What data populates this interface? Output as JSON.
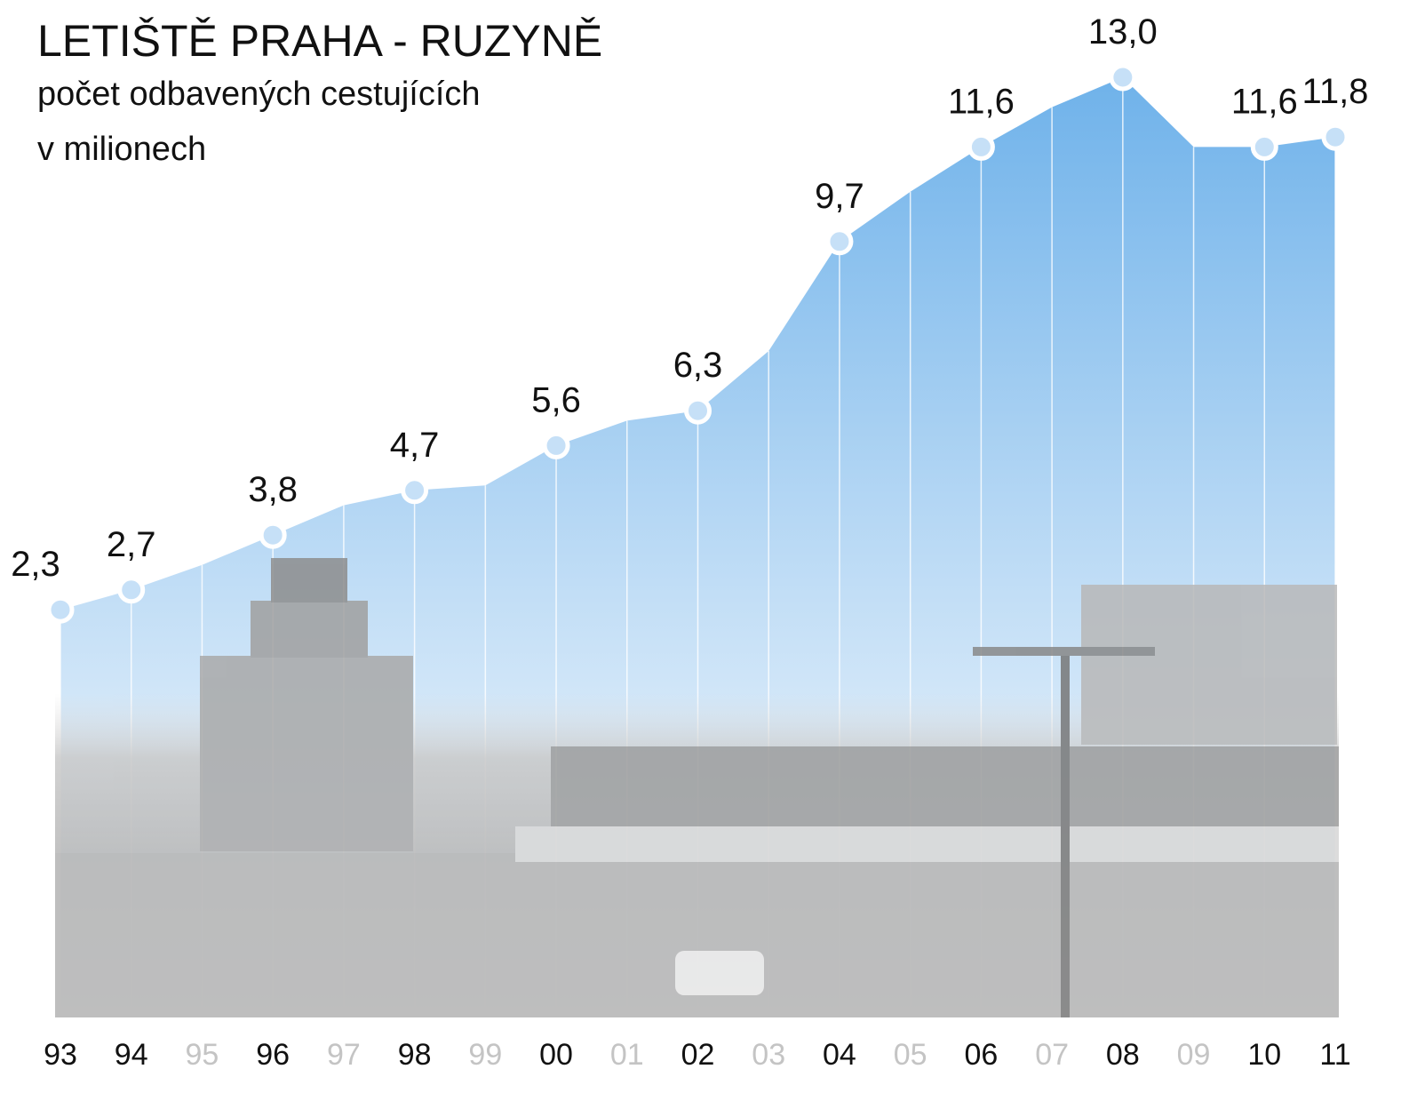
{
  "chart_data": {
    "type": "area",
    "title": "LETIŠTĚ PRAHA - RUZYNĚ",
    "subtitle": [
      "počet odbavených cestujících",
      "v milionech"
    ],
    "categories": [
      "93",
      "94",
      "95",
      "96",
      "97",
      "98",
      "99",
      "00",
      "01",
      "02",
      "03",
      "04",
      "05",
      "06",
      "07",
      "08",
      "09",
      "10",
      "11"
    ],
    "values": [
      2.3,
      2.7,
      3.2,
      3.8,
      4.4,
      4.7,
      4.8,
      5.6,
      6.1,
      6.3,
      7.5,
      9.7,
      10.7,
      11.6,
      12.4,
      13.0,
      11.6,
      11.6,
      11.8
    ],
    "value_labels": [
      "2,3",
      "2,7",
      null,
      "3,8",
      null,
      "4,7",
      null,
      "5,6",
      null,
      "6,3",
      null,
      "9,7",
      null,
      "11,6",
      null,
      "13,0",
      null,
      "11,6",
      "11,8"
    ],
    "color": "#8cc4f0"
  }
}
